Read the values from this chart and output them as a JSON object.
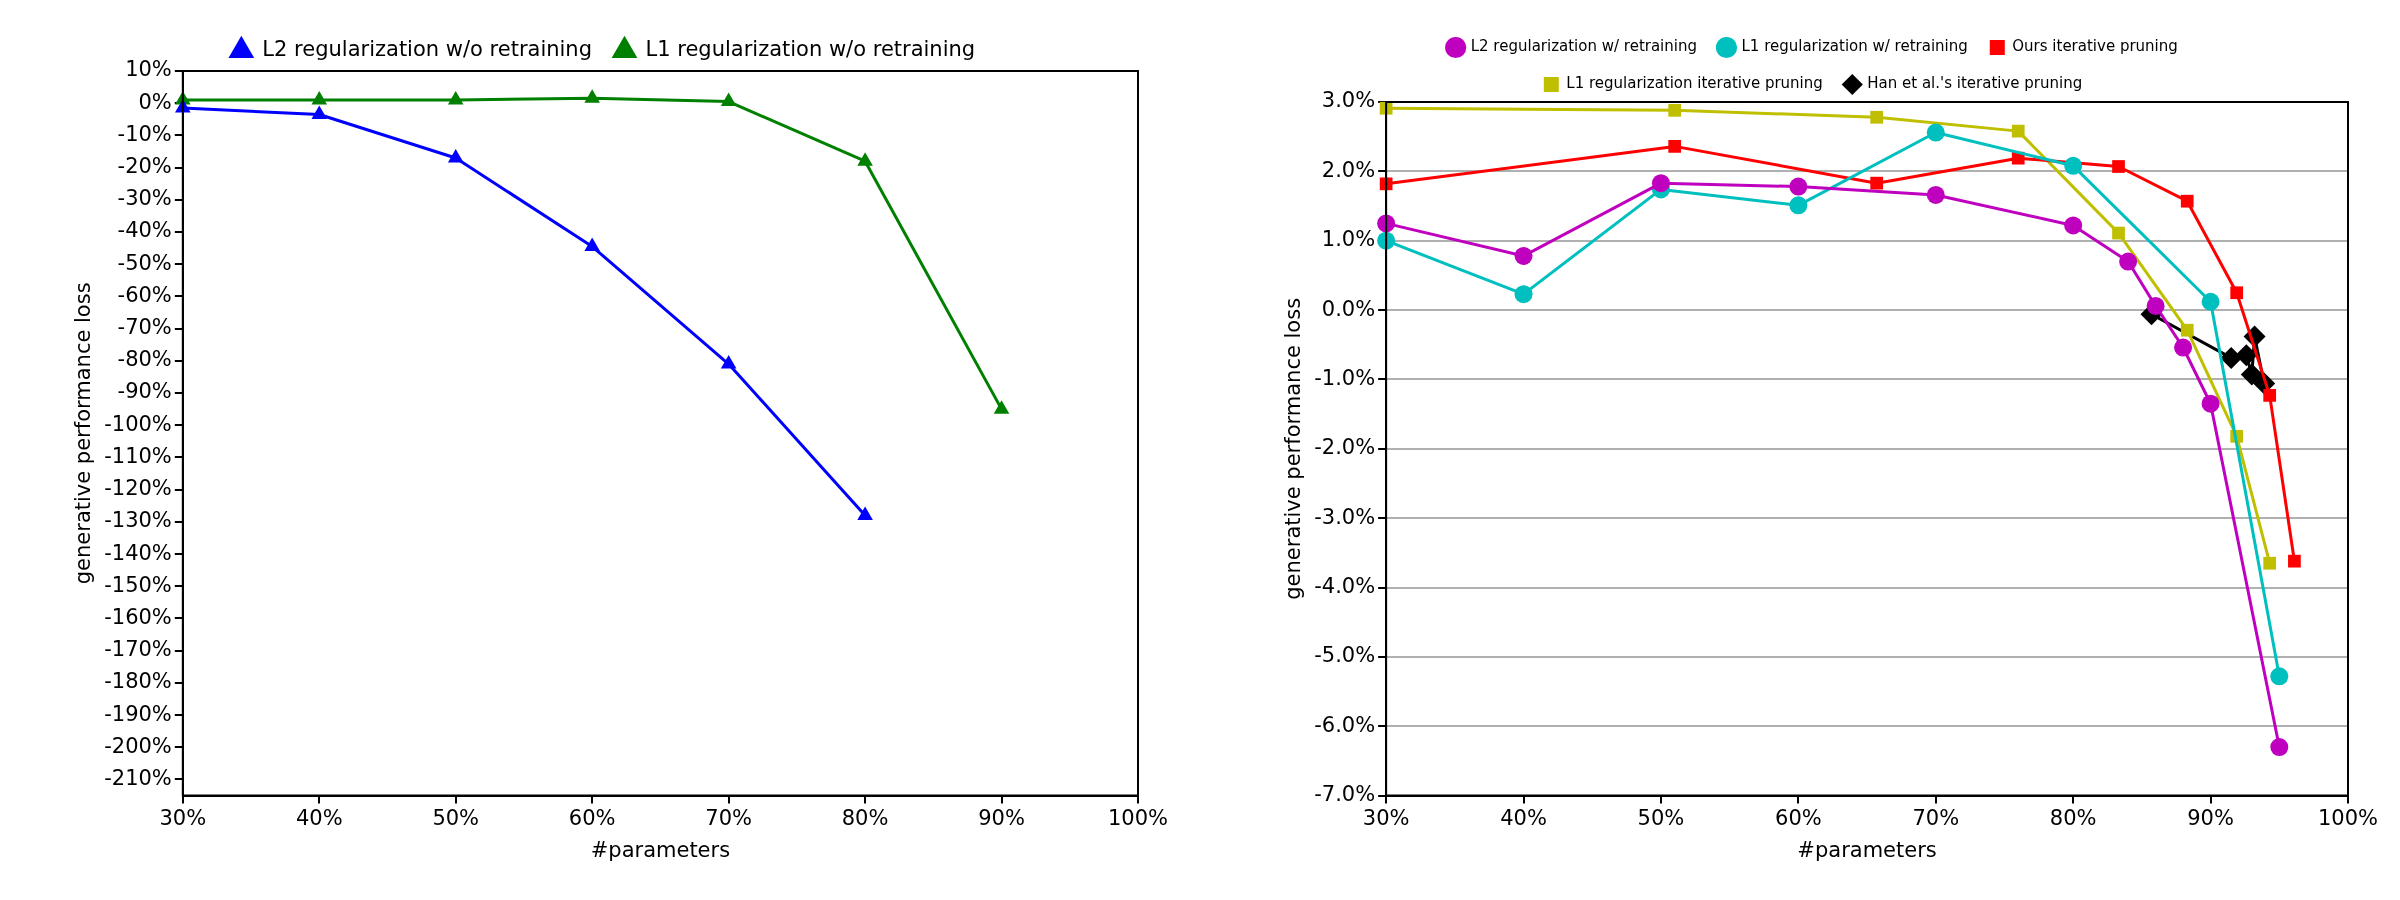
{
  "chart_data": [
    {
      "type": "line",
      "xlabel": "#parameters",
      "ylabel": "generative performance loss",
      "legend": "top",
      "grid": false,
      "marker": "triangle",
      "x": [
        30,
        40,
        50,
        60,
        70,
        80,
        90
      ],
      "xlim": [
        30,
        100
      ],
      "xticks": [
        {
          "value": 30,
          "label": "30%"
        },
        {
          "value": 40,
          "label": "40%"
        },
        {
          "value": 50,
          "label": "50%"
        },
        {
          "value": 60,
          "label": "60%"
        },
        {
          "value": 70,
          "label": "70%"
        },
        {
          "value": 80,
          "label": "80%"
        },
        {
          "value": 90,
          "label": "90%"
        },
        {
          "value": 100,
          "label": "100%"
        }
      ],
      "ylim": [
        -215,
        10
      ],
      "yticks": [
        {
          "value": 10,
          "label": "10%"
        },
        {
          "value": 0,
          "label": "0%"
        },
        {
          "value": -10,
          "label": "-10%"
        },
        {
          "value": -20,
          "label": "-20%"
        },
        {
          "value": -30,
          "label": "-30%"
        },
        {
          "value": -40,
          "label": "-40%"
        },
        {
          "value": -50,
          "label": "-50%"
        },
        {
          "value": -60,
          "label": "-60%"
        },
        {
          "value": -70,
          "label": "-70%"
        },
        {
          "value": -80,
          "label": "-80%"
        },
        {
          "value": -90,
          "label": "-90%"
        },
        {
          "value": -100,
          "label": "-100%"
        },
        {
          "value": -110,
          "label": "-110%"
        },
        {
          "value": -120,
          "label": "-120%"
        },
        {
          "value": -130,
          "label": "-130%"
        },
        {
          "value": -140,
          "label": "-140%"
        },
        {
          "value": -150,
          "label": "-150%"
        },
        {
          "value": -160,
          "label": "-160%"
        },
        {
          "value": -170,
          "label": "-170%"
        },
        {
          "value": -180,
          "label": "-180%"
        },
        {
          "value": -190,
          "label": "-190%"
        },
        {
          "value": -200,
          "label": "-200%"
        },
        {
          "value": -210,
          "label": "-210%"
        }
      ],
      "series": [
        {
          "name": "L2 regularization w/o retraining",
          "color": "#0000ff",
          "values": [
            -1.5,
            -3.5,
            -17,
            -44.5,
            -81,
            -128,
            null
          ]
        },
        {
          "name": "L1 regularization w/o retraining",
          "color": "#008000",
          "values": [
            1,
            1,
            1,
            1.5,
            0.5,
            -18,
            -95
          ]
        }
      ]
    },
    {
      "type": "line",
      "xlabel": "#parameters",
      "ylabel": "generative performance loss",
      "legend": "top",
      "grid": "y",
      "xlim": [
        30,
        100
      ],
      "xticks": [
        {
          "value": 30,
          "label": "30%"
        },
        {
          "value": 40,
          "label": "40%"
        },
        {
          "value": 50,
          "label": "50%"
        },
        {
          "value": 60,
          "label": "60%"
        },
        {
          "value": 70,
          "label": "70%"
        },
        {
          "value": 80,
          "label": "80%"
        },
        {
          "value": 90,
          "label": "90%"
        },
        {
          "value": 100,
          "label": "100%"
        }
      ],
      "ylim": [
        -7,
        3
      ],
      "yticks": [
        {
          "value": 3,
          "label": "3.0%"
        },
        {
          "value": 2,
          "label": "2.0%"
        },
        {
          "value": 1,
          "label": "1.0%"
        },
        {
          "value": 0,
          "label": "0.0%"
        },
        {
          "value": -1,
          "label": "-1.0%"
        },
        {
          "value": -2,
          "label": "-2.0%"
        },
        {
          "value": -3,
          "label": "-3.0%"
        },
        {
          "value": -4,
          "label": "-4.0%"
        },
        {
          "value": -5,
          "label": "-5.0%"
        },
        {
          "value": -6,
          "label": "-6.0%"
        },
        {
          "value": -7,
          "label": "-7.0%"
        }
      ],
      "series": [
        {
          "name": "L2 regularization w/ retraining",
          "color": "#bf00bf",
          "marker": "circle",
          "x": [
            30,
            40,
            50,
            60,
            70,
            80,
            84,
            86,
            88,
            90,
            95
          ],
          "values": [
            1.25,
            0.78,
            1.83,
            1.78,
            1.66,
            1.22,
            0.7,
            0.06,
            -0.54,
            -1.35,
            -6.3
          ]
        },
        {
          "name": "L1 regularization w/ retraining",
          "color": "#00bfbf",
          "marker": "circle",
          "x": [
            30,
            40,
            50,
            60,
            70,
            80,
            90,
            95
          ],
          "values": [
            1.0,
            0.23,
            1.74,
            1.51,
            2.56,
            2.08,
            0.12,
            -5.28
          ]
        },
        {
          "name": "Ours iterative pruning",
          "color": "#ff0000",
          "marker": "square",
          "x": [
            30,
            51,
            65.7,
            76,
            83.3,
            88.3,
            91.9,
            94.3,
            96.1
          ],
          "values": [
            1.82,
            2.36,
            1.83,
            2.19,
            2.07,
            1.57,
            0.25,
            -1.23,
            -3.62
          ]
        },
        {
          "name": "L1 regularization iterative pruning",
          "color": "#bfbf00",
          "marker": "square",
          "x": [
            30,
            51,
            65.7,
            76,
            83.3,
            88.3,
            91.9,
            94.3
          ],
          "values": [
            2.91,
            2.88,
            2.78,
            2.58,
            1.11,
            -0.29,
            -1.82,
            -3.65
          ]
        },
        {
          "name": "Han et al.'s iterative pruning",
          "color": "#000000",
          "marker": "diamond",
          "x": [
            85.7,
            91.5,
            92.6,
            93.0,
            93.2,
            93.9
          ],
          "values": [
            -0.06,
            -0.69,
            -0.65,
            -0.93,
            -0.38,
            -1.06
          ]
        }
      ]
    }
  ]
}
